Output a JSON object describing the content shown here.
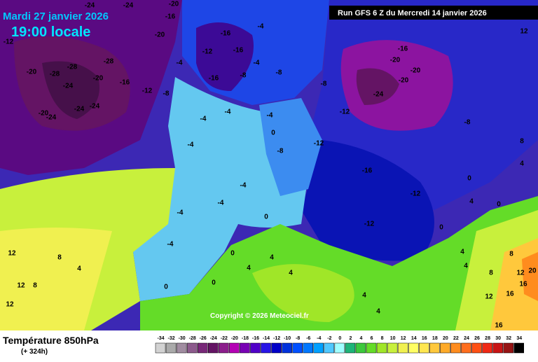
{
  "header": {
    "date": "Mardi 27 janvier 2026",
    "time": "19:00 locale",
    "run": "Run GFS 6 Z du Mercredi 14 janvier 2026"
  },
  "copyright": "Copyright © 2026 Meteociel.fr",
  "footer": {
    "title": "Température 850hPa",
    "lead": "(+ 324h)"
  },
  "scale": {
    "ticks": [
      -34,
      -32,
      -30,
      -28,
      -26,
      -24,
      -22,
      -20,
      -18,
      -16,
      -14,
      -12,
      -10,
      -8,
      -6,
      -4,
      -2,
      0,
      2,
      4,
      6,
      8,
      10,
      12,
      14,
      16,
      18,
      20,
      22,
      24,
      26,
      28,
      30,
      32,
      34
    ],
    "colors": [
      "#d2d2d2",
      "#aaaaaa",
      "#a08ca0",
      "#8c5a8c",
      "#782878",
      "#641464",
      "#8c1e8c",
      "#b400b4",
      "#7800b4",
      "#5000c8",
      "#2814e6",
      "#0000c8",
      "#0032dc",
      "#0050ff",
      "#0078ff",
      "#00a0ff",
      "#50c8ff",
      "#a0ffff",
      "#1eb478",
      "#3cc83c",
      "#64dc28",
      "#a0e628",
      "#c8f03c",
      "#f0f050",
      "#ffff64",
      "#ffe650",
      "#ffc83c",
      "#ffaa28",
      "#ff8c1e",
      "#ff6e1e",
      "#ff5014",
      "#f02814",
      "#c81414",
      "#961414",
      "#000000"
    ]
  },
  "map_labels": [
    -24,
    -24,
    -20,
    -12,
    -20,
    -28,
    -28,
    -24,
    -28,
    -20,
    -24,
    -24,
    -24,
    -20,
    -16,
    -12,
    -8,
    -20,
    -16,
    -4,
    -16,
    -12,
    -16,
    -16,
    -8,
    -4,
    -4,
    -8,
    -8,
    -12,
    -12,
    -16,
    -24,
    -16,
    -20,
    -20,
    -20,
    -8,
    -12,
    -12,
    0,
    0,
    0,
    -4,
    -4,
    -4,
    -4,
    -4,
    -4,
    -4,
    -4,
    0,
    -8,
    0,
    0,
    0,
    0,
    4,
    4,
    4,
    4,
    4,
    12,
    12,
    12,
    8,
    4,
    8,
    8,
    8,
    12,
    20,
    16,
    16,
    16,
    12,
    8,
    4,
    4,
    4,
    4,
    -8,
    12
  ]
}
